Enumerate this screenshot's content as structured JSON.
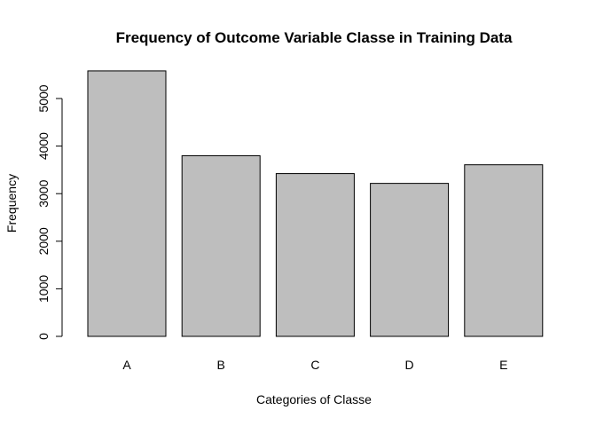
{
  "chart_data": {
    "type": "bar",
    "title": "Frequency of Outcome Variable Classe in Training Data",
    "xlabel": "Categories of Classe",
    "ylabel": "Frequency",
    "categories": [
      "A",
      "B",
      "C",
      "D",
      "E"
    ],
    "values": [
      5580,
      3797,
      3422,
      3216,
      3607
    ],
    "ylim": [
      0,
      5800
    ],
    "yticks": [
      0,
      1000,
      2000,
      3000,
      4000,
      5000
    ],
    "bar_color": "#bebebe",
    "grid": false,
    "legend": "none"
  }
}
